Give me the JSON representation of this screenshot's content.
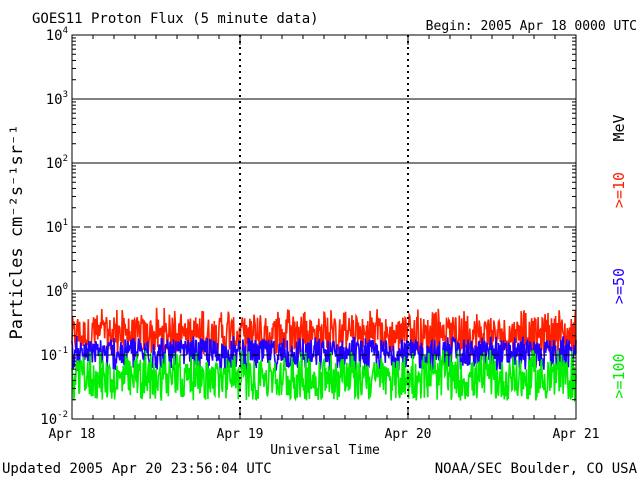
{
  "header": {
    "title": "GOES11 Proton Flux (5 minute data)",
    "begin": "Begin: 2005 Apr 18 0000 UTC"
  },
  "footer": {
    "updated": "Updated 2005 Apr 20 23:56:04 UTC",
    "credit": "NOAA/SEC Boulder, CO USA"
  },
  "chart_data": {
    "type": "line",
    "title": "GOES11 Proton Flux (5 minute data)",
    "xlabel": "Universal Time",
    "ylabel": "Particles cm⁻²s⁻¹sr⁻¹",
    "ylog": true,
    "ylim": [
      0.01,
      10000
    ],
    "xlim": [
      0,
      72
    ],
    "x_tick_labels": [
      "Apr 18",
      "Apr 19",
      "Apr 20",
      "Apr 21"
    ],
    "y_tick_labels": [
      {
        "base": "10",
        "exp": "-2"
      },
      {
        "base": "10",
        "exp": "-1"
      },
      {
        "base": "10",
        "exp": "0"
      },
      {
        "base": "10",
        "exp": "1"
      },
      {
        "base": "10",
        "exp": "2"
      },
      {
        "base": "10",
        "exp": "3"
      },
      {
        "base": "10",
        "exp": "4"
      }
    ],
    "y_tick_values": [
      0.01,
      0.1,
      1,
      10,
      100,
      1000,
      10000
    ],
    "solid_reference_lines": [
      1,
      100,
      1000
    ],
    "dashed_reference_lines": [
      0.1,
      10
    ],
    "right_legend_unit": "MeV",
    "series": [
      {
        "name": ">=10",
        "color": "#ff2000",
        "typical": 0.2,
        "range": [
          0.08,
          0.55
        ]
      },
      {
        "name": ">=50",
        "color": "#2000ff",
        "typical": 0.1,
        "range": [
          0.04,
          0.2
        ]
      },
      {
        "name": ">=100",
        "color": "#00ee00",
        "typical": 0.04,
        "range": [
          0.015,
          0.12
        ]
      }
    ]
  }
}
